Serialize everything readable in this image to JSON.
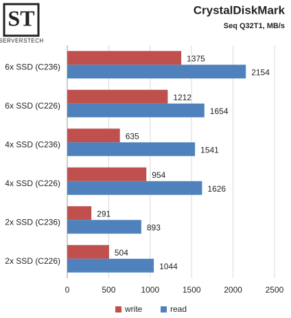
{
  "logo": {
    "text": "ST",
    "caption": "SERVERSTECH"
  },
  "chart_data": {
    "type": "bar",
    "orientation": "horizontal",
    "title": "CrystalDiskMark",
    "subtitle": "Seq Q32T1, MB/s",
    "categories": [
      "6x SSD (C236)",
      "6x SSD (C226)",
      "4x SSD (C236)",
      "4x SSD (C226)",
      "2x SSD (C236)",
      "2x SSD (C226)"
    ],
    "series": [
      {
        "name": "write",
        "color": "#c0504d",
        "values": [
          1375,
          1212,
          635,
          954,
          291,
          504
        ]
      },
      {
        "name": "read",
        "color": "#4f81bd",
        "values": [
          2154,
          1654,
          1541,
          1626,
          893,
          1044
        ]
      }
    ],
    "xlim": [
      0,
      2500
    ],
    "xticks": [
      0,
      500,
      1000,
      1500,
      2000,
      2500
    ],
    "grid": true,
    "legend": "bottom"
  }
}
